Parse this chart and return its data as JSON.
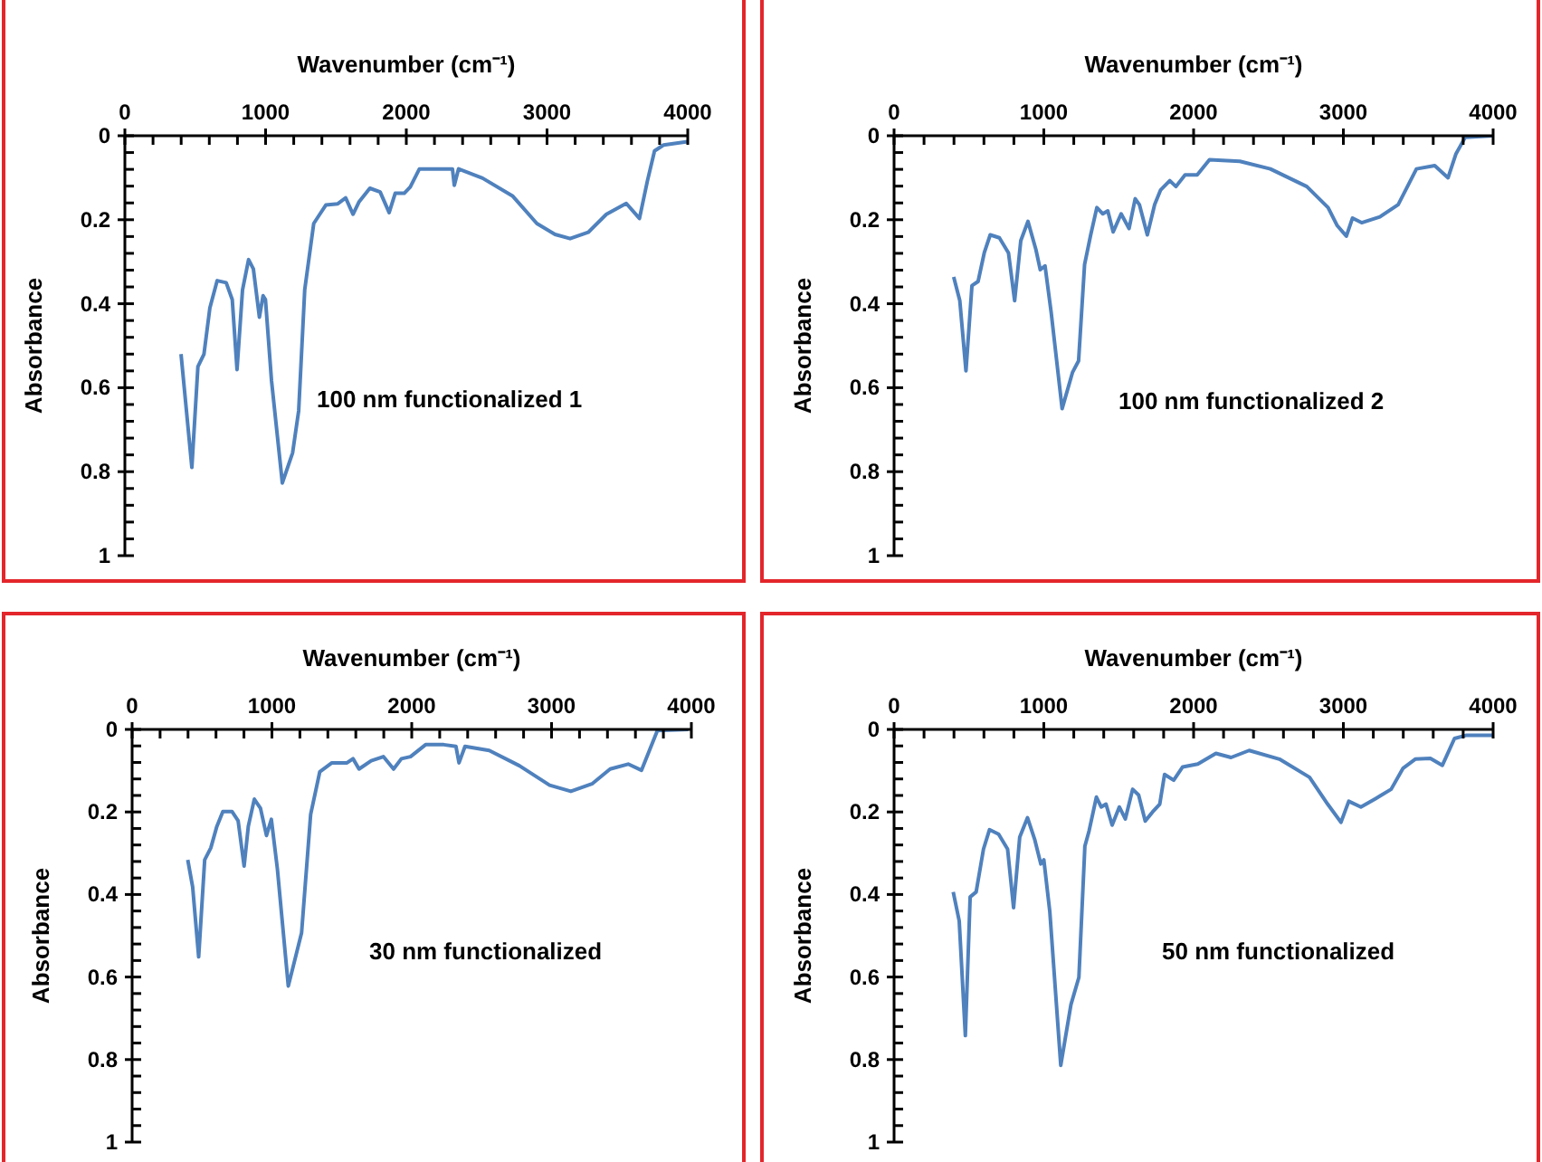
{
  "chart_data": [
    {
      "type": "line",
      "xlabel": "Wavenumber (cm⁻¹)",
      "ylabel": "Absorbance",
      "annotations": [
        "100 nm functionalized 1"
      ],
      "xlim": [
        0,
        4000
      ],
      "xticks": [
        0,
        {
          "value": 200,
          "label": null
        },
        {
          "value": 400,
          "label": null
        },
        {
          "value": 600,
          "label": null
        },
        {
          "value": 800,
          "label": null
        },
        1000,
        {
          "value": 1200,
          "label": null
        },
        {
          "value": 1400,
          "label": null
        },
        {
          "value": 1600,
          "label": null
        },
        {
          "value": 1800,
          "label": null
        },
        2000,
        {
          "value": 2200,
          "label": null
        },
        {
          "value": 2400,
          "label": null
        },
        {
          "value": 2600,
          "label": null
        },
        {
          "value": 2800,
          "label": null
        },
        3000,
        {
          "value": 3200,
          "label": null
        },
        {
          "value": 3400,
          "label": null
        },
        {
          "value": 3600,
          "label": null
        },
        {
          "value": 3800,
          "label": null
        },
        4000
      ],
      "ylim": [
        1,
        0
      ],
      "yticks": [
        0,
        {
          "value": 0.04,
          "label": null
        },
        {
          "value": 0.08,
          "label": null
        },
        {
          "value": 0.12,
          "label": null
        },
        {
          "value": 0.16,
          "label": null
        },
        0.2,
        {
          "value": 0.24,
          "label": null
        },
        {
          "value": 0.28,
          "label": null
        },
        {
          "value": 0.32,
          "label": null
        },
        {
          "value": 0.36,
          "label": null
        },
        0.4,
        {
          "value": 0.44,
          "label": null
        },
        {
          "value": 0.48,
          "label": null
        },
        {
          "value": 0.52,
          "label": null
        },
        {
          "value": 0.56,
          "label": null
        },
        0.6,
        {
          "value": 0.64,
          "label": null
        },
        {
          "value": 0.68,
          "label": null
        },
        {
          "value": 0.72,
          "label": null
        },
        {
          "value": 0.76,
          "label": null
        },
        0.8,
        {
          "value": 0.84,
          "label": null
        },
        {
          "value": 0.88,
          "label": null
        },
        {
          "value": 0.92,
          "label": null
        },
        {
          "value": 0.96,
          "label": null
        },
        1
      ],
      "grid": false,
      "legend": false,
      "marker": "none",
      "line_style": "solid",
      "x": [
        399,
        476,
        519,
        562,
        604,
        656,
        720,
        763,
        797,
        836,
        879,
        913,
        956,
        982,
        999,
        1042,
        1119,
        1192,
        1235,
        1278,
        1342,
        1385,
        1428,
        1513,
        1569,
        1621,
        1663,
        1741,
        1814,
        1878,
        1921,
        1985,
        2028,
        2093,
        2221,
        2328,
        2341,
        2371,
        2542,
        2757,
        2928,
        3057,
        3164,
        3293,
        3422,
        3563,
        3657,
        3713,
        3764,
        3828,
        4000
      ],
      "series": [
        {
          "color": "#4f81bd",
          "values": [
            0.52,
            0.79,
            0.55,
            0.52,
            0.41,
            0.345,
            0.35,
            0.39,
            0.557,
            0.367,
            0.295,
            0.317,
            0.432,
            0.381,
            0.39,
            0.583,
            0.827,
            0.755,
            0.655,
            0.367,
            0.209,
            0.187,
            0.165,
            0.162,
            0.148,
            0.187,
            0.158,
            0.125,
            0.134,
            0.183,
            0.137,
            0.137,
            0.122,
            0.079,
            0.079,
            0.079,
            0.118,
            0.079,
            0.101,
            0.144,
            0.209,
            0.235,
            0.245,
            0.23,
            0.187,
            0.161,
            0.197,
            0.108,
            0.036,
            0.022,
            0.014
          ]
        }
      ]
    },
    {
      "type": "line",
      "xlabel": "Wavenumber (cm⁻¹)",
      "ylabel": "Absorbance",
      "annotations": [
        "100 nm functionalized 2"
      ],
      "xlim": [
        0,
        4000
      ],
      "xticks": [
        0,
        {
          "value": 200,
          "label": null
        },
        {
          "value": 400,
          "label": null
        },
        {
          "value": 600,
          "label": null
        },
        {
          "value": 800,
          "label": null
        },
        1000,
        {
          "value": 1200,
          "label": null
        },
        {
          "value": 1400,
          "label": null
        },
        {
          "value": 1600,
          "label": null
        },
        {
          "value": 1800,
          "label": null
        },
        2000,
        {
          "value": 2200,
          "label": null
        },
        {
          "value": 2400,
          "label": null
        },
        {
          "value": 2600,
          "label": null
        },
        {
          "value": 2800,
          "label": null
        },
        3000,
        {
          "value": 3200,
          "label": null
        },
        {
          "value": 3400,
          "label": null
        },
        {
          "value": 3600,
          "label": null
        },
        {
          "value": 3800,
          "label": null
        },
        4000
      ],
      "ylim": [
        1,
        0
      ],
      "yticks": [
        0,
        {
          "value": 0.04,
          "label": null
        },
        {
          "value": 0.08,
          "label": null
        },
        {
          "value": 0.12,
          "label": null
        },
        {
          "value": 0.16,
          "label": null
        },
        0.2,
        {
          "value": 0.24,
          "label": null
        },
        {
          "value": 0.28,
          "label": null
        },
        {
          "value": 0.32,
          "label": null
        },
        {
          "value": 0.36,
          "label": null
        },
        0.4,
        {
          "value": 0.44,
          "label": null
        },
        {
          "value": 0.48,
          "label": null
        },
        {
          "value": 0.52,
          "label": null
        },
        {
          "value": 0.56,
          "label": null
        },
        0.6,
        {
          "value": 0.64,
          "label": null
        },
        {
          "value": 0.68,
          "label": null
        },
        {
          "value": 0.72,
          "label": null
        },
        {
          "value": 0.76,
          "label": null
        },
        0.8,
        {
          "value": 0.84,
          "label": null
        },
        {
          "value": 0.88,
          "label": null
        },
        {
          "value": 0.92,
          "label": null
        },
        {
          "value": 0.96,
          "label": null
        },
        1
      ],
      "grid": false,
      "legend": false,
      "marker": "none",
      "line_style": "solid",
      "x": [
        398,
        439,
        480,
        520,
        561,
        602,
        642,
        703,
        764,
        805,
        846,
        894,
        947,
        976,
        1008,
        1049,
        1122,
        1191,
        1232,
        1272,
        1313,
        1354,
        1394,
        1427,
        1463,
        1516,
        1569,
        1610,
        1638,
        1691,
        1740,
        1780,
        1841,
        1882,
        1943,
        2024,
        2106,
        2309,
        2512,
        2756,
        2898,
        2959,
        3020,
        3061,
        3122,
        3244,
        3366,
        3488,
        3610,
        3699,
        3752,
        3813,
        4000
      ],
      "series": [
        {
          "color": "#4f81bd",
          "values": [
            0.336,
            0.393,
            0.56,
            0.357,
            0.347,
            0.279,
            0.236,
            0.243,
            0.279,
            0.393,
            0.25,
            0.204,
            0.271,
            0.319,
            0.31,
            0.421,
            0.65,
            0.564,
            0.536,
            0.307,
            0.236,
            0.171,
            0.186,
            0.179,
            0.229,
            0.186,
            0.221,
            0.15,
            0.164,
            0.236,
            0.164,
            0.129,
            0.107,
            0.121,
            0.093,
            0.093,
            0.057,
            0.061,
            0.079,
            0.121,
            0.171,
            0.214,
            0.239,
            0.196,
            0.207,
            0.193,
            0.164,
            0.079,
            0.071,
            0.1,
            0.043,
            0.004,
            0
          ]
        }
      ]
    },
    {
      "type": "line",
      "xlabel": "Wavenumber (cm⁻¹)",
      "ylabel": "Absorbance",
      "annotations": [
        "30 nm functionalized"
      ],
      "xlim": [
        0,
        4000
      ],
      "xticks": [
        0,
        {
          "value": 200,
          "label": null
        },
        {
          "value": 400,
          "label": null
        },
        {
          "value": 600,
          "label": null
        },
        {
          "value": 800,
          "label": null
        },
        1000,
        {
          "value": 1200,
          "label": null
        },
        {
          "value": 1400,
          "label": null
        },
        {
          "value": 1600,
          "label": null
        },
        {
          "value": 1800,
          "label": null
        },
        2000,
        {
          "value": 2200,
          "label": null
        },
        {
          "value": 2400,
          "label": null
        },
        {
          "value": 2600,
          "label": null
        },
        {
          "value": 2800,
          "label": null
        },
        3000,
        {
          "value": 3200,
          "label": null
        },
        {
          "value": 3400,
          "label": null
        },
        {
          "value": 3600,
          "label": null
        },
        {
          "value": 3800,
          "label": null
        },
        4000
      ],
      "ylim": [
        1,
        0
      ],
      "yticks": [
        0,
        {
          "value": 0.04,
          "label": null
        },
        {
          "value": 0.08,
          "label": null
        },
        {
          "value": 0.12,
          "label": null
        },
        {
          "value": 0.16,
          "label": null
        },
        0.2,
        {
          "value": 0.24,
          "label": null
        },
        {
          "value": 0.28,
          "label": null
        },
        {
          "value": 0.32,
          "label": null
        },
        {
          "value": 0.36,
          "label": null
        },
        0.4,
        {
          "value": 0.44,
          "label": null
        },
        {
          "value": 0.48,
          "label": null
        },
        {
          "value": 0.52,
          "label": null
        },
        {
          "value": 0.56,
          "label": null
        },
        0.6,
        {
          "value": 0.64,
          "label": null
        },
        {
          "value": 0.68,
          "label": null
        },
        {
          "value": 0.72,
          "label": null
        },
        {
          "value": 0.76,
          "label": null
        },
        0.8,
        {
          "value": 0.84,
          "label": null
        },
        {
          "value": 0.88,
          "label": null
        },
        {
          "value": 0.92,
          "label": null
        },
        {
          "value": 0.96,
          "label": null
        },
        1
      ],
      "grid": false,
      "legend": false,
      "marker": "none",
      "line_style": "solid",
      "x": [
        398,
        433,
        476,
        519,
        563,
        606,
        649,
        714,
        758,
        801,
        831,
        874,
        918,
        961,
        996,
        1039,
        1117,
        1212,
        1277,
        1342,
        1429,
        1537,
        1580,
        1623,
        1710,
        1797,
        1870,
        1926,
        1991,
        2099,
        2229,
        2316,
        2338,
        2381,
        2554,
        2770,
        2986,
        3138,
        3289,
        3419,
        3548,
        3643,
        3700,
        3757,
        3978
      ],
      "series": [
        {
          "color": "#4f81bd",
          "values": [
            0.316,
            0.382,
            0.551,
            0.316,
            0.287,
            0.235,
            0.199,
            0.199,
            0.221,
            0.331,
            0.235,
            0.169,
            0.191,
            0.257,
            0.218,
            0.338,
            0.622,
            0.493,
            0.206,
            0.103,
            0.081,
            0.081,
            0.071,
            0.096,
            0.076,
            0.066,
            0.096,
            0.071,
            0.066,
            0.037,
            0.037,
            0.041,
            0.081,
            0.041,
            0.051,
            0.088,
            0.135,
            0.15,
            0.132,
            0.096,
            0.084,
            0.099,
            0.051,
            0.003,
            0
          ]
        }
      ]
    },
    {
      "type": "line",
      "xlabel": "Wavenumber (cm⁻¹)",
      "ylabel": "Absorbance",
      "annotations": [
        "50 nm functionalized"
      ],
      "xlim": [
        0,
        4000
      ],
      "xticks": [
        0,
        {
          "value": 200,
          "label": null
        },
        {
          "value": 400,
          "label": null
        },
        {
          "value": 600,
          "label": null
        },
        {
          "value": 800,
          "label": null
        },
        1000,
        {
          "value": 1200,
          "label": null
        },
        {
          "value": 1400,
          "label": null
        },
        {
          "value": 1600,
          "label": null
        },
        {
          "value": 1800,
          "label": null
        },
        2000,
        {
          "value": 2200,
          "label": null
        },
        {
          "value": 2400,
          "label": null
        },
        {
          "value": 2600,
          "label": null
        },
        {
          "value": 2800,
          "label": null
        },
        3000,
        {
          "value": 3200,
          "label": null
        },
        {
          "value": 3400,
          "label": null
        },
        {
          "value": 3600,
          "label": null
        },
        {
          "value": 3800,
          "label": null
        },
        4000
      ],
      "ylim": [
        1,
        0
      ],
      "yticks": [
        0,
        {
          "value": 0.04,
          "label": null
        },
        {
          "value": 0.08,
          "label": null
        },
        {
          "value": 0.12,
          "label": null
        },
        {
          "value": 0.16,
          "label": null
        },
        0.2,
        {
          "value": 0.24,
          "label": null
        },
        {
          "value": 0.28,
          "label": null
        },
        {
          "value": 0.32,
          "label": null
        },
        {
          "value": 0.36,
          "label": null
        },
        0.4,
        {
          "value": 0.44,
          "label": null
        },
        {
          "value": 0.48,
          "label": null
        },
        {
          "value": 0.52,
          "label": null
        },
        {
          "value": 0.56,
          "label": null
        },
        0.6,
        {
          "value": 0.64,
          "label": null
        },
        {
          "value": 0.68,
          "label": null
        },
        {
          "value": 0.72,
          "label": null
        },
        {
          "value": 0.76,
          "label": null
        },
        0.8,
        {
          "value": 0.84,
          "label": null
        },
        {
          "value": 0.88,
          "label": null
        },
        {
          "value": 0.92,
          "label": null
        },
        {
          "value": 0.96,
          "label": null
        },
        1
      ],
      "grid": false,
      "legend": false,
      "marker": "none",
      "line_style": "solid",
      "x": [
        395,
        435,
        476,
        508,
        548,
        597,
        637,
        698,
        758,
        798,
        839,
        891,
        940,
        980,
        1000,
        1040,
        1113,
        1181,
        1234,
        1274,
        1302,
        1351,
        1383,
        1415,
        1456,
        1504,
        1544,
        1593,
        1633,
        1677,
        1726,
        1774,
        1806,
        1867,
        1927,
        2028,
        2149,
        2250,
        2371,
        2573,
        2774,
        2895,
        2984,
        3036,
        3117,
        3218,
        3319,
        3399,
        3480,
        3581,
        3661,
        3742,
        3823,
        4000
      ],
      "series": [
        {
          "color": "#4f81bd",
          "values": [
            0.394,
            0.464,
            0.742,
            0.406,
            0.394,
            0.29,
            0.243,
            0.254,
            0.29,
            0.432,
            0.261,
            0.214,
            0.268,
            0.326,
            0.316,
            0.442,
            0.814,
            0.667,
            0.601,
            0.283,
            0.246,
            0.164,
            0.188,
            0.181,
            0.232,
            0.188,
            0.217,
            0.145,
            0.159,
            0.222,
            0.2,
            0.181,
            0.109,
            0.123,
            0.091,
            0.084,
            0.058,
            0.068,
            0.051,
            0.072,
            0.116,
            0.181,
            0.225,
            0.174,
            0.188,
            0.167,
            0.145,
            0.094,
            0.072,
            0.07,
            0.087,
            0.022,
            0.014,
            0.014
          ]
        }
      ]
    }
  ]
}
